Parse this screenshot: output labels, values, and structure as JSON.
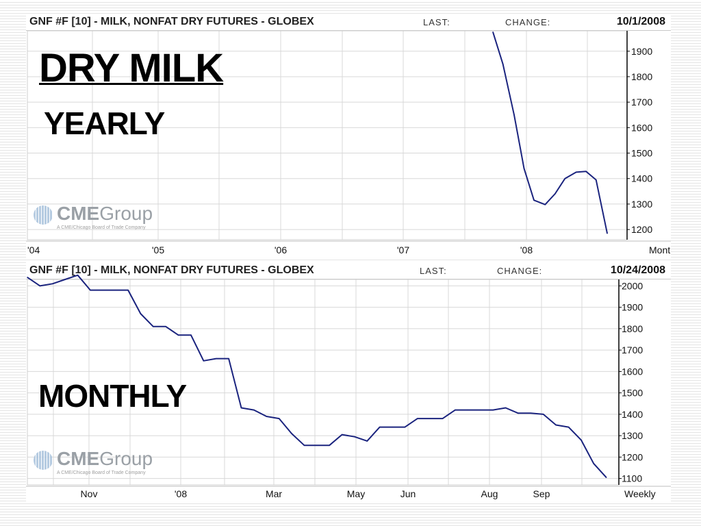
{
  "slide": {
    "title": "DRY MILK",
    "subtitle_yearly": "YEARLY",
    "subtitle_monthly": "MONTHLY"
  },
  "logo": {
    "brand_bold": "CME",
    "brand_light": "Group",
    "tagline": "A CME/Chicago Board of Trade Company",
    "icon": "globe-icon"
  },
  "colors": {
    "line": "#1a237e",
    "grid": "#d8d8d8",
    "axis": "#000000"
  },
  "chart_data": [
    {
      "type": "line",
      "header": {
        "symbol": "GNF #F [10] - MILK, NONFAT DRY FUTURES - GLOBEX",
        "last_label": "LAST:",
        "change_label": "CHANGE:",
        "date": "10/1/2008"
      },
      "x_tick_labels": [
        "'04",
        "'05",
        "'06",
        "'07",
        "'08"
      ],
      "x_axis_label": "Month",
      "x_range": [
        2004.0,
        2008.83
      ],
      "ylim": [
        1160,
        1980
      ],
      "y_ticks": [
        1200,
        1300,
        1400,
        1500,
        1600,
        1700,
        1800,
        1900
      ],
      "grid": true,
      "series": [
        {
          "x": [
            2007.75,
            2007.83,
            2007.92,
            2008.0,
            2008.08,
            2008.17,
            2008.25,
            2008.33,
            2008.42,
            2008.5,
            2008.58,
            2008.67
          ],
          "values": [
            1975,
            1850,
            1650,
            1440,
            1315,
            1298,
            1340,
            1400,
            1425,
            1428,
            1395,
            1185
          ]
        }
      ]
    },
    {
      "type": "line",
      "header": {
        "symbol": "GNF #F [10] - MILK, NONFAT DRY FUTURES - GLOBEX",
        "last_label": "LAST:",
        "change_label": "CHANGE:",
        "date": "10/24/2008"
      },
      "x_tick_labels": [
        "Nov",
        "'08",
        "Mar",
        "May",
        "Jun",
        "Aug",
        "Sep"
      ],
      "x_axis_label": "Weekly",
      "x_range": [
        0,
        47
      ],
      "ylim": [
        1070,
        2030
      ],
      "y_ticks": [
        1100,
        1200,
        1300,
        1400,
        1500,
        1600,
        1700,
        1800,
        1900,
        2000
      ],
      "grid": true,
      "series": [
        {
          "x": [
            0,
            1,
            2,
            3,
            4,
            5,
            6,
            7,
            8,
            9,
            10,
            11,
            12,
            13,
            14,
            15,
            16,
            17,
            18,
            19,
            20,
            21,
            22,
            23,
            24,
            25,
            26,
            27,
            28,
            29,
            30,
            31,
            32,
            33,
            34,
            35,
            36,
            37,
            38,
            39,
            40,
            41,
            42,
            43,
            44,
            45,
            46
          ],
          "values": [
            2040,
            2000,
            2010,
            2030,
            2050,
            1980,
            1980,
            1980,
            1980,
            1870,
            1810,
            1810,
            1770,
            1770,
            1650,
            1660,
            1660,
            1430,
            1420,
            1390,
            1380,
            1310,
            1255,
            1255,
            1255,
            1305,
            1295,
            1275,
            1340,
            1340,
            1340,
            1380,
            1380,
            1380,
            1420,
            1420,
            1420,
            1420,
            1430,
            1405,
            1405,
            1400,
            1350,
            1340,
            1280,
            1170,
            1105
          ]
        }
      ]
    }
  ]
}
